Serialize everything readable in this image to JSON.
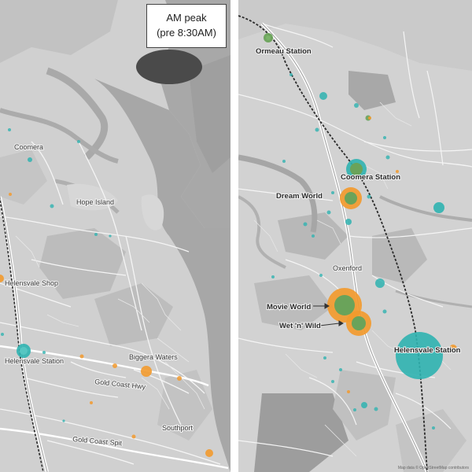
{
  "peak_box": {
    "line1": "AM peak",
    "line2": "(pre 8:30AM)"
  },
  "left_map": {
    "labels": {
      "coomera": "Coomera",
      "hope_island": "Hope Island",
      "helensvale_shop": "Helensvale Shop",
      "helensvale_station": "Helensvale Station",
      "biggera_waters": "Biggera Waters",
      "gold_coast_hwy": "Gold Coast Hwy",
      "southport": "Southport",
      "gold_coast_spit": "Gold Coast Spit"
    }
  },
  "right_map": {
    "labels": {
      "ormeau_station": "Ormeau Station",
      "coomera_station": "Coomera Station",
      "dreamworld": "Dream World",
      "oxenford": "Oxenford",
      "movie_world": "Movie World",
      "wet_n_wild": "Wet 'n' Wild",
      "helensvale_station": "Helensvale Station"
    },
    "credit": "Map data © OpenStreetMap contributors"
  },
  "colors": {
    "map_bg": "#cfcfcf",
    "water": "#a9a9a9",
    "road": "#f4f4f4",
    "major_road": "#ffffff",
    "rail": "#2e2e2e",
    "teal": "#2fb3b0",
    "orange": "#f29a2e",
    "green": "#6aa35a"
  }
}
